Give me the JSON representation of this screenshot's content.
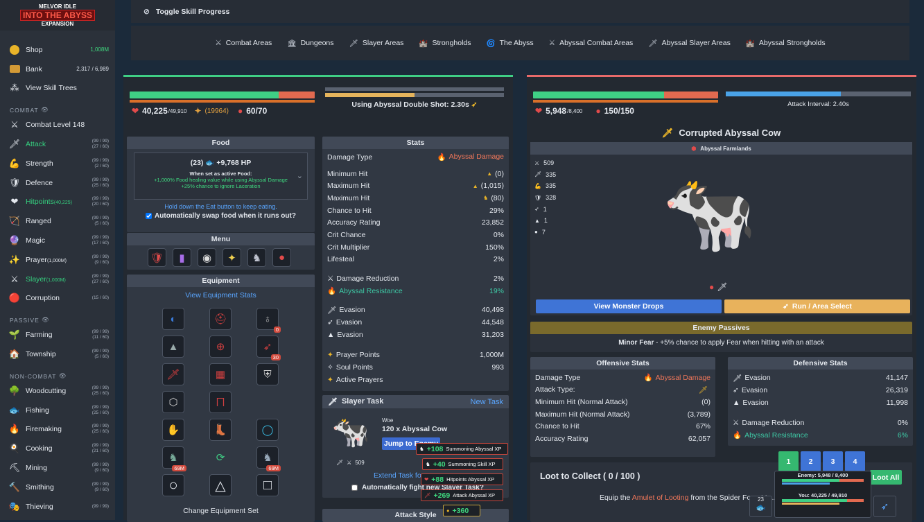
{
  "sidebar": {
    "logo": {
      "top": "MELVOR IDLE",
      "main": "INTO THE ABYSS",
      "sub": "EXPANSION"
    },
    "top_items": [
      {
        "name": "Shop",
        "value": "1,008M",
        "icon": "coins-icon"
      },
      {
        "name": "Bank",
        "value": "2,317 / 6,989",
        "icon": "bank-icon"
      },
      {
        "name": "View Skill Trees",
        "value": "",
        "icon": "skill-tree-icon"
      }
    ],
    "combat_header": "COMBAT",
    "combat_items": [
      {
        "name": "Combat Level 148",
        "extra": "",
        "l1": "",
        "l2": "",
        "green": false,
        "icon": "⚔"
      },
      {
        "name": "Attack",
        "extra": "",
        "l1": "(99 / 99)",
        "l2": "(27 / 60)",
        "green": true,
        "icon": "🗡"
      },
      {
        "name": "Strength",
        "extra": "",
        "l1": "(99 / 99)",
        "l2": "(2 / 60)",
        "green": false,
        "icon": "💪"
      },
      {
        "name": "Defence",
        "extra": "",
        "l1": "(99 / 99)",
        "l2": "(25 / 60)",
        "green": false,
        "icon": "🛡"
      },
      {
        "name": "Hitpoints",
        "extra": "(40,225)",
        "l1": "(99 / 99)",
        "l2": "(20 / 60)",
        "green": true,
        "icon": "❤"
      },
      {
        "name": "Ranged",
        "extra": "",
        "l1": "(99 / 99)",
        "l2": "(5 / 60)",
        "green": false,
        "icon": "🏹"
      },
      {
        "name": "Magic",
        "extra": "",
        "l1": "(99 / 99)",
        "l2": "(17 / 60)",
        "green": false,
        "icon": "🔮"
      },
      {
        "name": "Prayer",
        "extra": "(1,000M)",
        "l1": "(99 / 99)",
        "l2": "(9 / 60)",
        "green": false,
        "icon": "✨"
      },
      {
        "name": "Slayer",
        "extra": "(1,000M)",
        "l1": "(99 / 99)",
        "l2": "(27 / 60)",
        "green": true,
        "icon": "⚔"
      },
      {
        "name": "Corruption",
        "extra": "",
        "l1": "",
        "l2": "(15 / 60)",
        "green": false,
        "icon": "🔴"
      }
    ],
    "passive_header": "PASSIVE",
    "passive_items": [
      {
        "name": "Farming",
        "l1": "(99 / 99)",
        "l2": "(11 / 60)",
        "icon": "🌱"
      },
      {
        "name": "Township",
        "l1": "(99 / 99)",
        "l2": "(5 / 60)",
        "icon": "🏠"
      }
    ],
    "noncombat_header": "NON-COMBAT",
    "noncombat_items": [
      {
        "name": "Woodcutting",
        "l1": "(99 / 99)",
        "l2": "(25 / 60)",
        "icon": "🌳"
      },
      {
        "name": "Fishing",
        "l1": "(99 / 99)",
        "l2": "(25 / 60)",
        "icon": "🐟"
      },
      {
        "name": "Firemaking",
        "l1": "(99 / 99)",
        "l2": "(25 / 60)",
        "icon": "🔥"
      },
      {
        "name": "Cooking",
        "l1": "(99 / 99)",
        "l2": "(21 / 60)",
        "icon": "🍳"
      },
      {
        "name": "Mining",
        "l1": "(99 / 99)",
        "l2": "(9 / 60)",
        "icon": "⛏"
      },
      {
        "name": "Smithing",
        "l1": "(99 / 99)",
        "l2": "(9 / 60)",
        "icon": "🔨"
      },
      {
        "name": "Thieving",
        "l1": "(99 / 99)",
        "l2": "",
        "icon": "🎭"
      }
    ]
  },
  "topbar": {
    "toggle_label": "Toggle Skill Progress"
  },
  "areas": [
    {
      "label": "Combat Areas",
      "icon": "⚔"
    },
    {
      "label": "Dungeons",
      "icon": "🏛"
    },
    {
      "label": "Slayer Areas",
      "icon": "🗡"
    },
    {
      "label": "Strongholds",
      "icon": "🏰"
    },
    {
      "label": "The Abyss",
      "icon": "🌀"
    },
    {
      "label": "Abyssal Combat Areas",
      "icon": "⚔"
    },
    {
      "label": "Abyssal Slayer Areas",
      "icon": "🗡"
    },
    {
      "label": "Abyssal Strongholds",
      "icon": "🏰"
    }
  ],
  "player": {
    "hp": "40,225",
    "hp_max": "/49,910",
    "hp_fraction": 0.806,
    "prayer": "(19964)",
    "soul": "60/70",
    "attack_label": "Using Abyssal Double Shot: 2.30s",
    "food": {
      "header": "Food",
      "qty": "(23)",
      "heal": "+9,768 HP",
      "active_title": "When set as active Food:",
      "effect1": "+1,000% Food healing value while using Abyssal Damage",
      "effect2": "+25% chance to ignore Laceration",
      "hold_hint": "Hold down the Eat button to keep eating.",
      "swap_label": "Automatically swap food when it runs out?"
    },
    "menu": {
      "header": "Menu"
    },
    "equipment": {
      "header": "Equipment",
      "view_stats": "View Equipment Stats",
      "change_set": "Change Equipment Set",
      "badges": [
        "0",
        "30",
        "69M",
        "69M"
      ]
    },
    "stats": {
      "header": "Stats",
      "damage_type_label": "Damage Type",
      "damage_type": "Abyssal Damage",
      "rows1": [
        [
          "Minimum Hit",
          "(0)"
        ],
        [
          "Maximum Hit",
          "(1,015)"
        ],
        [
          "Maximum Hit",
          "(80)"
        ],
        [
          "Chance to Hit",
          "29%"
        ],
        [
          "Accuracy Rating",
          "23,852"
        ],
        [
          "Crit Chance",
          "0%"
        ],
        [
          "Crit Multiplier",
          "150%"
        ],
        [
          "Lifesteal",
          "2%"
        ]
      ],
      "dr_label": "Damage Reduction",
      "dr": "2%",
      "ar_label": "Abyssal Resistance",
      "ar": "19%",
      "evasion": [
        [
          "Evasion",
          "40,498"
        ],
        [
          "Evasion",
          "44,548"
        ],
        [
          "Evasion",
          "31,203"
        ]
      ],
      "prayer_points_label": "Prayer Points",
      "prayer_points": "1,000M",
      "soul_points_label": "Soul Points",
      "soul_points": "993",
      "active_prayers": "Active Prayers"
    },
    "slayer": {
      "header": "Slayer Task",
      "new_task": "New Task",
      "monster_name": "Woe",
      "task": "120 x Abyssal Cow",
      "jump": "Jump to Enemy",
      "stat": "509",
      "extend": "Extend Task for",
      "auto": "Automatically fight new Slayer Task?"
    },
    "attack_style": "Attack Style"
  },
  "toasts": [
    {
      "value": "+108",
      "label": "Summoning Abyssal XP"
    },
    {
      "value": "+40",
      "label": "Summoning Skill XP"
    },
    {
      "value": "+88",
      "label": "Hitpoints Abyssal XP"
    },
    {
      "value": "+269",
      "label": "Attack Abyssal XP"
    },
    {
      "value": "+360",
      "label": ""
    }
  ],
  "enemy": {
    "hp": "5,948",
    "hp_max": "/8,400",
    "hp_fraction": 0.708,
    "soul": "150/150",
    "attack_interval": "Attack Interval: 2.40s",
    "name": "Corrupted Abyssal Cow",
    "area": "Abyssal Farmlands",
    "levels": [
      "509",
      "335",
      "335",
      "328",
      "1",
      "1",
      "7"
    ],
    "view_drops": "View Monster Drops",
    "run": "Run / Area Select",
    "passives_header": "Enemy Passives",
    "passive_name": "Minor Fear",
    "passive_text": " - +5% chance to apply Fear when hitting with an attack",
    "offensive": {
      "header": "Offensive Stats",
      "rows": [
        [
          "Damage Type",
          "Abyssal Damage"
        ],
        [
          "Attack Type:",
          ""
        ],
        [
          "Minimum Hit (Normal Attack)",
          "(0)"
        ],
        [
          "Maximum Hit (Normal Attack)",
          "(3,789)"
        ],
        [
          "Chance to Hit",
          "67%"
        ],
        [
          "Accuracy Rating",
          "62,057"
        ]
      ]
    },
    "defensive": {
      "header": "Defensive Stats",
      "evasion": [
        [
          "Evasion",
          "41,147"
        ],
        [
          "Evasion",
          "26,319"
        ],
        [
          "Evasion",
          "11,998"
        ]
      ],
      "dr_label": "Damage Reduction",
      "dr": "0%",
      "ar_label": "Abyssal Resistance",
      "ar": "6%"
    },
    "loot": {
      "title": "Loot to Collect ( 0 / 100 )",
      "loot_all": "Loot All",
      "hint_pre": "Equip the ",
      "hint_item": "Amulet of Looting",
      "hint_post": " from the Spider Forest to..."
    },
    "tabs": [
      "1",
      "2",
      "3",
      "4"
    ],
    "mini": {
      "enemy": "Enemy: 5,948 / 8,400",
      "you": "You: 40,225 / 49,910",
      "food_qty": "23"
    }
  }
}
